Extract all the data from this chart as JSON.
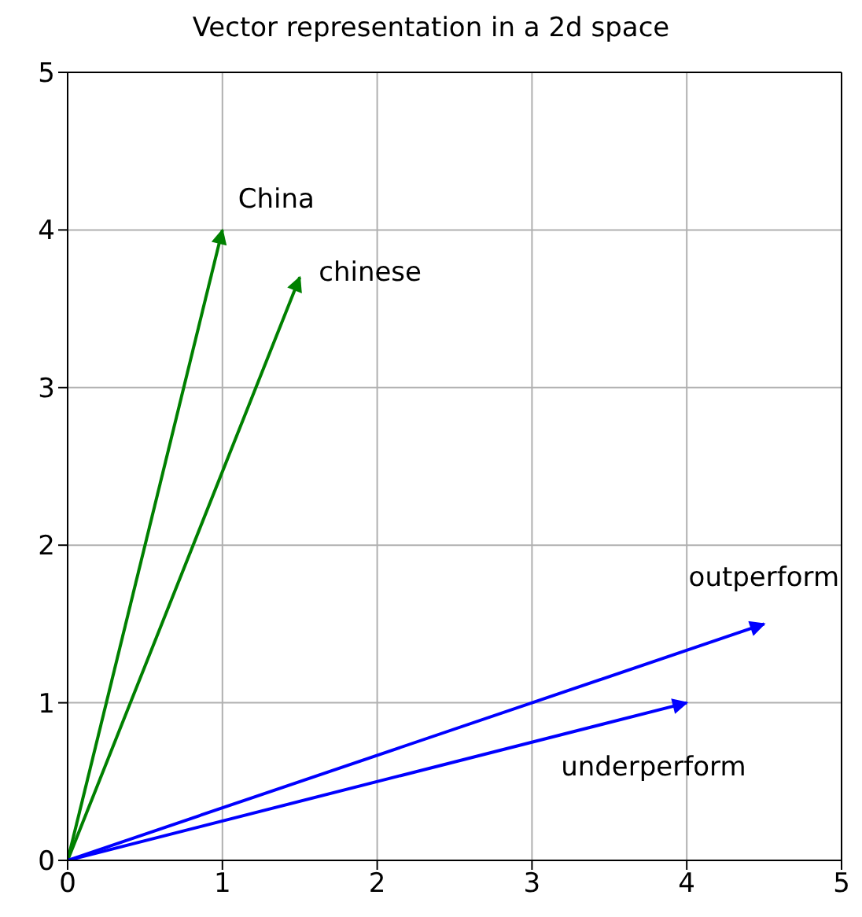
{
  "chart_data": {
    "type": "line",
    "title": "Vector representation in a 2d space",
    "xlim": [
      0,
      5
    ],
    "ylim": [
      0,
      5
    ],
    "xticks": [
      0,
      1,
      2,
      3,
      4,
      5
    ],
    "yticks": [
      0,
      1,
      2,
      3,
      4,
      5
    ],
    "grid": true,
    "marker": "none",
    "line_style": "solid",
    "series": [
      {
        "name": "China",
        "color": "#008000",
        "x": [
          0,
          1
        ],
        "values": [
          0,
          4
        ]
      },
      {
        "name": "chinese",
        "color": "#008000",
        "x": [
          0,
          1.5
        ],
        "values": [
          0,
          3.7
        ]
      },
      {
        "name": "outperform",
        "color": "#0000ff",
        "x": [
          0,
          4.5
        ],
        "values": [
          0,
          1.5
        ]
      },
      {
        "name": "underperform",
        "color": "#0000ff",
        "x": [
          0,
          4
        ],
        "values": [
          0,
          1
        ]
      }
    ]
  }
}
